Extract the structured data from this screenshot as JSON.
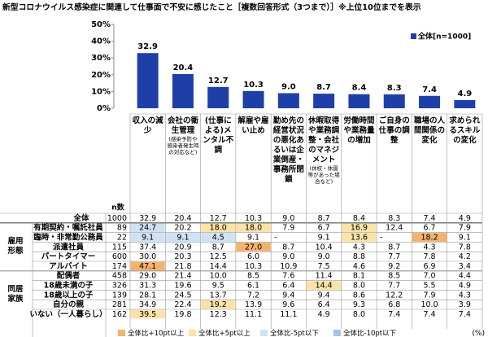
{
  "title": "新型コロナウイルス感染症に関連して仕事面で不安に感じたこと［複数回答形式（3つまで）］※上位10位までを表示",
  "chart_data": {
    "type": "bar",
    "categories": [
      "収入の減少",
      "会社の衛生管理",
      "(仕事による)メンタル不調",
      "解雇や雇い止め",
      "勤め先の経営状況の悪化あるいは企業倒産・事務所閉鎖",
      "休暇取得や業務調整・会社のマネジメント",
      "労働時間や業務量の増加",
      "ご自身の仕事の調整",
      "職場の人間関係の変化",
      "求められるスキルの変化"
    ],
    "category_notes": [
      null,
      "(感染予防や感染者発生時の対応など)",
      null,
      null,
      null,
      "(休校・休園等があった場合など)",
      null,
      null,
      null,
      null
    ],
    "series": [
      {
        "name": "全体[n=1000]",
        "color": "#1f3fa8",
        "values": [
          32.9,
          20.4,
          12.7,
          10.3,
          9.0,
          8.7,
          8.4,
          8.3,
          7.4,
          4.9
        ],
        "value_labels": [
          "32.9",
          "20.4",
          "12.7",
          "10.3",
          "9.0",
          "8.7",
          "8.4",
          "8.3",
          "7.4",
          "4.9"
        ]
      }
    ],
    "ylim": [
      0,
      50
    ],
    "yticks": [
      {
        "value": 0,
        "label": "0%"
      },
      {
        "value": 10,
        "label": "10%"
      },
      {
        "value": 20,
        "label": "20%"
      },
      {
        "value": 30,
        "label": "30%"
      },
      {
        "value": 40,
        "label": "40%"
      },
      {
        "value": 50,
        "label": "50%"
      }
    ],
    "legend_position": "top-right"
  },
  "table": {
    "n_header": "n数",
    "unit": "(%)",
    "total": {
      "label": "全体",
      "n": 1000,
      "values": [
        "32.9",
        "20.4",
        "12.7",
        "10.3",
        "9.0",
        "8.7",
        "8.4",
        "8.3",
        "7.4",
        "4.9"
      ]
    },
    "groups": [
      {
        "label": "雇用形態",
        "rows": [
          {
            "label": "有期契約・嘱託社員",
            "n": 89,
            "values": [
              "24.7",
              "20.2",
              "18.0",
              "18.0",
              "7.9",
              "6.7",
              "16.9",
              "12.4",
              "6.7",
              "7.9"
            ]
          },
          {
            "label": "臨時・非常勤公務員",
            "n": 22,
            "values": [
              "9.1",
              "9.1",
              "4.5",
              "9.1",
              "-",
              "9.1",
              "13.6",
              "-",
              "18.2",
              "9.1"
            ]
          },
          {
            "label": "派遣社員",
            "n": 115,
            "values": [
              "37.4",
              "20.9",
              "8.7",
              "27.0",
              "8.7",
              "10.4",
              "4.3",
              "8.7",
              "4.3",
              "7.8"
            ]
          },
          {
            "label": "パートタイマー",
            "n": 600,
            "values": [
              "30.0",
              "20.3",
              "12.5",
              "6.0",
              "9.0",
              "9.0",
              "8.8",
              "7.7",
              "7.8",
              "4.2"
            ]
          },
          {
            "label": "アルバイト",
            "n": 174,
            "values": [
              "47.1",
              "21.8",
              "14.4",
              "10.3",
              "10.9",
              "7.5",
              "4.6",
              "9.2",
              "6.9",
              "3.4"
            ]
          }
        ]
      },
      {
        "label": "同居家族",
        "rows": [
          {
            "label": "配偶者",
            "n": 458,
            "values": [
              "29.0",
              "21.4",
              "10.0",
              "8.5",
              "7.6",
              "11.4",
              "8.1",
              "8.5",
              "7.0",
              "4.4"
            ]
          },
          {
            "label": "18歳未満の子",
            "n": 326,
            "values": [
              "31.3",
              "19.6",
              "9.5",
              "6.1",
              "6.4",
              "14.4",
              "8.0",
              "7.7",
              "5.5",
              "4.9"
            ]
          },
          {
            "label": "18歳以上の子",
            "n": 139,
            "values": [
              "28.1",
              "24.5",
              "13.7",
              "7.2",
              "9.4",
              "9.4",
              "8.6",
              "12.2",
              "7.9",
              "4.3"
            ]
          },
          {
            "label": "自分の親",
            "n": 281,
            "values": [
              "34.9",
              "22.4",
              "19.2",
              "13.9",
              "9.6",
              "6.4",
              "9.3",
              "6.8",
              "10.0",
              "3.9"
            ]
          },
          {
            "label": "いない（一人暮らし）",
            "n": 162,
            "values": [
              "39.5",
              "19.8",
              "12.3",
              "11.1",
              "11.1",
              "4.9",
              "8.0",
              "7.4",
              "7.4",
              "7.4"
            ]
          }
        ]
      }
    ],
    "legend": [
      {
        "label": "全体比+10pt以上",
        "color": "#f6b26b",
        "threshold": 10
      },
      {
        "label": "全体比+5pt以上",
        "color": "#fde3a7",
        "threshold": 5
      },
      {
        "label": "全体比-5pt以下",
        "color": "#cfe2f3",
        "threshold": -5
      },
      {
        "label": "全体比-10pt以下",
        "color": "#9fc5e8",
        "threshold": -10
      }
    ]
  }
}
